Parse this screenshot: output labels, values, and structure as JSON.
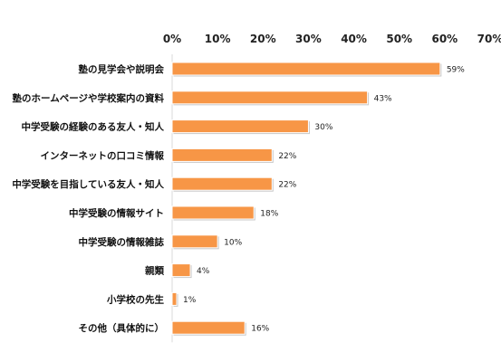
{
  "chart_data": {
    "type": "bar",
    "orientation": "horizontal",
    "categories": [
      "塾の見学会や説明会",
      "塾のホームページや学校案内の資料",
      "中学受験の経験のある友人・知人",
      "インターネットの口コミ情報",
      "中学受験を目指している友人・知人",
      "中学受験の情報サイト",
      "中学受験の情報雑誌",
      "親類",
      "小学校の先生",
      "その他（具体的に）"
    ],
    "values": [
      59,
      43,
      30,
      22,
      22,
      18,
      10,
      4,
      1,
      16
    ],
    "data_labels": [
      "59%",
      "43%",
      "30%",
      "22%",
      "22%",
      "18%",
      "10%",
      "4%",
      "1%",
      "16%"
    ],
    "xlim": [
      0,
      70
    ],
    "xticks": [
      0,
      10,
      20,
      30,
      40,
      50,
      60,
      70
    ],
    "xtick_labels": [
      "0%",
      "10%",
      "20%",
      "30%",
      "40%",
      "50%",
      "60%",
      "70%"
    ],
    "axis_position": "top",
    "grid": false,
    "legend": "none",
    "bar_color": "#F79646",
    "bar_edge_color": "#FFFFFF",
    "title": "",
    "xlabel": "",
    "ylabel": ""
  }
}
